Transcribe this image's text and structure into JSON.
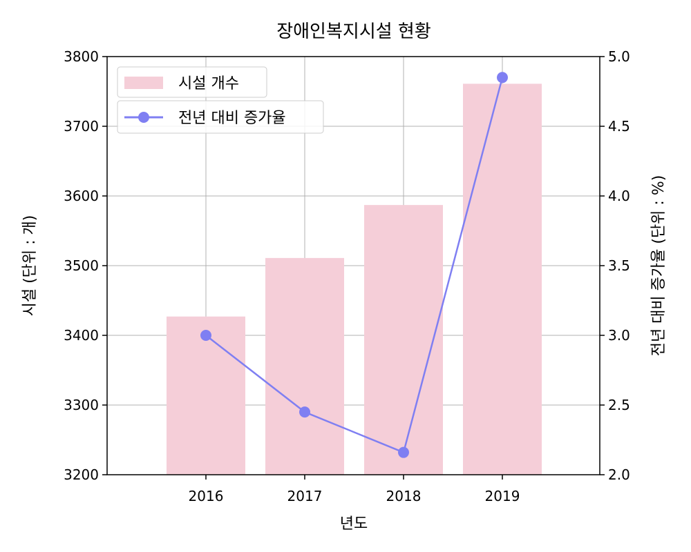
{
  "chart_data": {
    "type": "bar",
    "title": "장애인복지시설 현황",
    "xlabel": "년도",
    "ylabel": "시설 (단위 : 개)",
    "y2label": "전년 대비 증가율 (단위 : %)",
    "categories": [
      "2016",
      "2017",
      "2018",
      "2019"
    ],
    "ylim": [
      3200,
      3800
    ],
    "y2lim": [
      2.0,
      5.0
    ],
    "yticks": [
      "3200",
      "3300",
      "3400",
      "3500",
      "3600",
      "3700",
      "3800"
    ],
    "y2ticks": [
      "2.0",
      "2.5",
      "3.0",
      "3.5",
      "4.0",
      "4.5",
      "5.0"
    ],
    "grid": true,
    "legend_position": "top-left",
    "series": [
      {
        "name": "시설 개수",
        "type": "bar",
        "axis": "left",
        "color": "#f5ced8",
        "values": [
          3427,
          3511,
          3587,
          3761
        ]
      },
      {
        "name": "전년 대비 증가율",
        "type": "line",
        "axis": "right",
        "color": "#7f7ff2",
        "values": [
          3.0,
          2.45,
          2.16,
          4.85
        ]
      }
    ]
  }
}
